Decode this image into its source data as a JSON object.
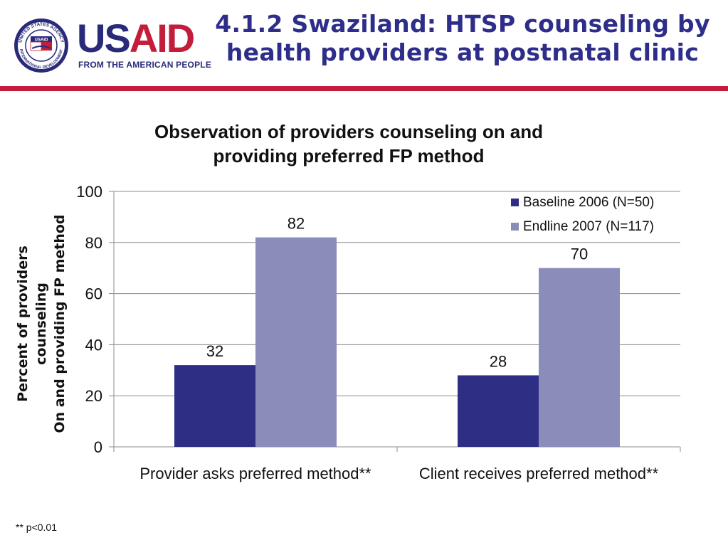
{
  "logo": {
    "wordmark_us": "US",
    "wordmark_aid": "AID",
    "tagline": "FROM THE AMERICAN PEOPLE",
    "seal_top_text": "UNITED STATES AGENCY",
    "seal_bottom_text": "INTERNATIONAL DEVELOPMENT",
    "seal_badge": "USAID"
  },
  "slide": {
    "title_line1": "4.1.2 Swaziland: HTSP counseling by",
    "title_line2": "health providers at postnatal clinic",
    "footnote": "** p<0.01"
  },
  "colors": {
    "title": "#2e2e8a",
    "rule": "#c21d3a",
    "baseline": "#2e2e85",
    "endline": "#8a8cba"
  },
  "chart_data": {
    "type": "bar",
    "title_line1": "Observation of providers counseling on and",
    "title_line2": "providing preferred FP method",
    "ylabel_line1": "Percent of providers counseling",
    "ylabel_line2": "On and providing FP method",
    "xlabel": "",
    "categories": [
      "Provider asks preferred method**",
      "Client receives preferred method**"
    ],
    "series": [
      {
        "name": "Baseline 2006 (N=50)",
        "values": [
          32,
          28
        ],
        "color": "#2e2e85"
      },
      {
        "name": "Endline 2007 (N=117)",
        "values": [
          82,
          70
        ],
        "color": "#8a8cba"
      }
    ],
    "ylim": [
      0,
      100
    ],
    "yticks": [
      0,
      20,
      40,
      60,
      80,
      100
    ],
    "grid": true,
    "legend": "top-right",
    "data_labels": true
  }
}
